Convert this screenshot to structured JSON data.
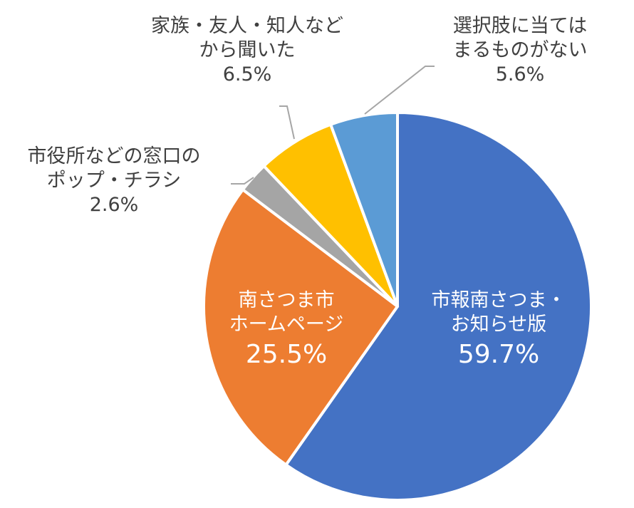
{
  "chart_data": {
    "type": "pie",
    "title": "",
    "start_angle_deg": 0,
    "direction": "clockwise",
    "slices": [
      {
        "label": "市報南さつま・お知らせ版",
        "label_lines": [
          "市報南さつま・",
          "お知らせ版"
        ],
        "value": 59.7,
        "pct_text": "59.7%",
        "color": "#4472C4",
        "label_position": "inside"
      },
      {
        "label": "南さつま市ホームページ",
        "label_lines": [
          "南さつま市",
          "ホームページ"
        ],
        "value": 25.5,
        "pct_text": "25.5%",
        "color": "#ED7D31",
        "label_position": "inside"
      },
      {
        "label": "市役所などの窓口のポップ・チラシ",
        "label_lines": [
          "市役所などの窓口の",
          "ポップ・チラシ"
        ],
        "value": 2.6,
        "pct_text": "2.6%",
        "color": "#A5A5A5",
        "label_position": "outside"
      },
      {
        "label": "家族・友人・知人などから聞いた",
        "label_lines": [
          "家族・友人・知人など",
          "から聞いた"
        ],
        "value": 6.5,
        "pct_text": "6.5%",
        "color": "#FFC000",
        "label_position": "outside"
      },
      {
        "label": "選択肢に当てはまるものがない",
        "label_lines": [
          "選択肢に当ては",
          "まるものがない"
        ],
        "value": 5.6,
        "pct_text": "5.6%",
        "color": "#5B9BD5",
        "label_position": "outside"
      }
    ],
    "legend": "none",
    "leader_line_color": "#A6A6A6"
  }
}
